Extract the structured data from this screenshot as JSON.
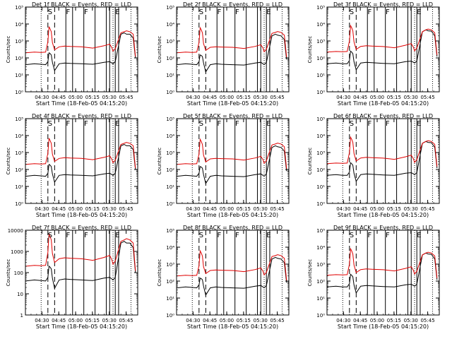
{
  "colors": {
    "events": "#000000",
    "lld": "#e00000",
    "axis": "#000000",
    "background": "#ffffff"
  },
  "shared": {
    "xlabel": "Start Time (18-Feb-05 04:15:20)",
    "ylabel": "Counts/sec",
    "x_tick_labels": [
      "04:30",
      "04:45",
      "05:00",
      "05:15",
      "05:30",
      "05:45"
    ],
    "x_tick_minutes": [
      14.67,
      29.67,
      44.67,
      59.67,
      74.67,
      89.67
    ],
    "xlim_minutes": [
      0,
      100
    ],
    "y_scale": "log",
    "legend_text": "BLACK = Events, RED = LLD",
    "markers": {
      "dotted_lines_minutes": [
        14.0,
        78.0,
        94.0
      ],
      "dashed_lines_minutes": [
        20.0,
        26.0
      ],
      "solid_lines_minutes": [
        36.0,
        42.0,
        52.0,
        62.0,
        72.0,
        75.0,
        80.0,
        83.0
      ],
      "letters": [
        {
          "text": "S",
          "minute": 22.0
        },
        {
          "text": "F",
          "minute": 38.0
        },
        {
          "text": "F",
          "minute": 54.0
        },
        {
          "text": "E",
          "minute": 82.0
        }
      ]
    }
  },
  "chart_data": [
    {
      "type": "line",
      "title": "Det 1f BLACK = Events, RED = LLD",
      "ylim": [
        1,
        100000
      ],
      "y_tick_labels": [
        "10⁰",
        "10¹",
        "10²",
        "10³",
        "10⁴",
        "10⁵"
      ],
      "x": [
        0,
        8,
        14,
        18,
        20,
        21,
        22,
        23,
        24,
        26,
        30,
        35,
        40,
        50,
        60,
        70,
        75,
        77,
        78,
        80,
        85,
        88,
        90,
        93,
        96,
        98
      ],
      "series": [
        {
          "values": [
            40,
            45,
            42,
            40,
            60,
            200,
            180,
            150,
            55,
            18,
            45,
            50,
            48,
            45,
            42,
            55,
            60,
            50,
            45,
            60,
            2500,
            3000,
            2500,
            2500,
            1500,
            100
          ]
        },
        {
          "values": [
            200,
            220,
            210,
            220,
            900,
            7000,
            5000,
            3500,
            800,
            300,
            450,
            500,
            480,
            450,
            380,
            520,
            650,
            400,
            250,
            350,
            3000,
            3500,
            4000,
            3500,
            2500,
            120
          ]
        }
      ]
    },
    {
      "type": "line",
      "title": "Det 2f BLACK = Events, RED = LLD",
      "ylim": [
        1,
        100000
      ],
      "y_tick_labels": [
        "10⁰",
        "10¹",
        "10²",
        "10³",
        "10⁴",
        "10⁵"
      ],
      "x": [
        0,
        8,
        14,
        18,
        20,
        21,
        22,
        23,
        24,
        26,
        30,
        35,
        40,
        50,
        60,
        70,
        75,
        77,
        78,
        80,
        85,
        88,
        90,
        93,
        96,
        98
      ],
      "series": [
        {
          "values": [
            40,
            45,
            42,
            40,
            60,
            150,
            140,
            120,
            50,
            15,
            40,
            45,
            42,
            40,
            38,
            50,
            55,
            45,
            40,
            55,
            2000,
            2500,
            2200,
            2000,
            1200,
            80
          ]
        },
        {
          "values": [
            200,
            220,
            210,
            220,
            800,
            6000,
            4500,
            3000,
            700,
            280,
            420,
            450,
            440,
            420,
            360,
            480,
            600,
            380,
            230,
            330,
            2800,
            3200,
            3600,
            3200,
            2200,
            110
          ]
        }
      ]
    },
    {
      "type": "line",
      "title": "Det 3f BLACK = Events, RED = LLD",
      "ylim": [
        1,
        100000
      ],
      "y_tick_labels": [
        "10⁰",
        "10¹",
        "10²",
        "10³",
        "10⁴",
        "10⁵"
      ],
      "x": [
        0,
        8,
        14,
        18,
        20,
        21,
        22,
        23,
        24,
        26,
        30,
        35,
        40,
        50,
        60,
        70,
        75,
        77,
        78,
        80,
        85,
        88,
        90,
        93,
        96,
        98
      ],
      "series": [
        {
          "values": [
            45,
            50,
            45,
            45,
            70,
            250,
            220,
            180,
            60,
            20,
            50,
            55,
            52,
            48,
            45,
            60,
            65,
            55,
            50,
            65,
            3500,
            4500,
            4000,
            3800,
            2000,
            120
          ]
        },
        {
          "values": [
            220,
            240,
            230,
            240,
            1000,
            8000,
            6000,
            4000,
            900,
            320,
            480,
            520,
            500,
            470,
            400,
            560,
            700,
            420,
            260,
            380,
            3500,
            4500,
            5000,
            4500,
            3000,
            150
          ]
        }
      ]
    },
    {
      "type": "line",
      "title": "Det 4f BLACK = Events, RED = LLD",
      "ylim": [
        1,
        100000
      ],
      "y_tick_labels": [
        "10⁰",
        "10¹",
        "10²",
        "10³",
        "10⁴",
        "10⁵"
      ],
      "x": [
        0,
        8,
        14,
        18,
        20,
        21,
        22,
        23,
        24,
        26,
        30,
        35,
        40,
        50,
        60,
        70,
        75,
        77,
        78,
        80,
        85,
        88,
        90,
        93,
        96,
        98
      ],
      "series": [
        {
          "values": [
            40,
            45,
            42,
            40,
            60,
            200,
            180,
            150,
            55,
            18,
            45,
            50,
            48,
            45,
            42,
            55,
            60,
            50,
            45,
            60,
            2500,
            3000,
            2500,
            2500,
            1500,
            100
          ]
        },
        {
          "values": [
            200,
            220,
            210,
            220,
            900,
            7000,
            5000,
            3500,
            800,
            300,
            450,
            500,
            480,
            450,
            380,
            520,
            650,
            400,
            250,
            350,
            3000,
            3500,
            4000,
            3500,
            2500,
            120
          ]
        }
      ]
    },
    {
      "type": "line",
      "title": "Det 5f BLACK = Events, RED = LLD",
      "ylim": [
        1,
        100000
      ],
      "y_tick_labels": [
        "10⁰",
        "10¹",
        "10²",
        "10³",
        "10⁴",
        "10⁵"
      ],
      "x": [
        0,
        8,
        14,
        18,
        20,
        21,
        22,
        23,
        24,
        26,
        30,
        35,
        40,
        50,
        60,
        70,
        75,
        77,
        78,
        80,
        85,
        88,
        90,
        93,
        96,
        98
      ],
      "series": [
        {
          "values": [
            40,
            45,
            42,
            40,
            60,
            150,
            140,
            120,
            50,
            15,
            40,
            45,
            42,
            40,
            38,
            50,
            55,
            45,
            40,
            55,
            2000,
            2500,
            2200,
            2000,
            1200,
            80
          ]
        },
        {
          "values": [
            200,
            220,
            210,
            220,
            800,
            6000,
            4500,
            3000,
            700,
            280,
            420,
            450,
            440,
            420,
            360,
            480,
            600,
            380,
            230,
            330,
            2800,
            3200,
            3600,
            3200,
            2200,
            110
          ]
        }
      ]
    },
    {
      "type": "line",
      "title": "Det 6f BLACK = Events, RED = LLD",
      "ylim": [
        1,
        100000
      ],
      "y_tick_labels": [
        "10⁰",
        "10¹",
        "10²",
        "10³",
        "10⁴",
        "10⁵"
      ],
      "x": [
        0,
        8,
        14,
        18,
        20,
        21,
        22,
        23,
        24,
        26,
        30,
        35,
        40,
        50,
        60,
        70,
        75,
        77,
        78,
        80,
        85,
        88,
        90,
        93,
        96,
        98
      ],
      "series": [
        {
          "values": [
            45,
            50,
            45,
            45,
            70,
            250,
            220,
            180,
            60,
            20,
            50,
            55,
            52,
            48,
            45,
            60,
            65,
            55,
            50,
            65,
            3500,
            4500,
            4000,
            3800,
            2000,
            120
          ]
        },
        {
          "values": [
            220,
            240,
            230,
            240,
            1000,
            8000,
            6000,
            4000,
            900,
            320,
            480,
            520,
            500,
            470,
            400,
            560,
            700,
            420,
            260,
            380,
            3500,
            4500,
            5000,
            4500,
            3000,
            150
          ]
        }
      ]
    },
    {
      "type": "line",
      "title": "Det 7f BLACK = Events, RED = LLD",
      "ylim": [
        1,
        10000
      ],
      "y_tick_labels": [
        "1",
        "10",
        "100",
        "1000",
        "10000"
      ],
      "x": [
        0,
        8,
        14,
        18,
        20,
        21,
        22,
        23,
        24,
        26,
        30,
        35,
        40,
        50,
        60,
        70,
        75,
        77,
        78,
        80,
        85,
        88,
        90,
        93,
        96,
        98
      ],
      "series": [
        {
          "values": [
            40,
            45,
            42,
            40,
            60,
            200,
            180,
            150,
            55,
            18,
            45,
            50,
            48,
            45,
            42,
            55,
            60,
            50,
            45,
            60,
            2500,
            3000,
            2500,
            2500,
            1500,
            100
          ]
        },
        {
          "values": [
            200,
            220,
            210,
            220,
            900,
            7000,
            5000,
            3500,
            800,
            300,
            450,
            500,
            480,
            450,
            380,
            520,
            650,
            400,
            250,
            350,
            3000,
            3500,
            4000,
            3500,
            2500,
            120
          ]
        }
      ]
    },
    {
      "type": "line",
      "title": "Det 8f BLACK = Events, RED = LLD",
      "ylim": [
        1,
        100000
      ],
      "y_tick_labels": [
        "10⁰",
        "10¹",
        "10²",
        "10³",
        "10⁴",
        "10⁵"
      ],
      "x": [
        0,
        8,
        14,
        18,
        20,
        21,
        22,
        23,
        24,
        26,
        30,
        35,
        40,
        50,
        60,
        70,
        75,
        77,
        78,
        80,
        85,
        88,
        90,
        93,
        96,
        98
      ],
      "series": [
        {
          "values": [
            40,
            45,
            42,
            40,
            60,
            150,
            140,
            120,
            50,
            15,
            40,
            45,
            42,
            40,
            38,
            50,
            55,
            45,
            40,
            55,
            2000,
            2500,
            2200,
            2000,
            1200,
            80
          ]
        },
        {
          "values": [
            200,
            220,
            210,
            220,
            800,
            6000,
            4500,
            3000,
            700,
            280,
            420,
            450,
            440,
            420,
            360,
            480,
            600,
            380,
            230,
            330,
            2800,
            3200,
            3600,
            3200,
            2200,
            110
          ]
        }
      ]
    },
    {
      "type": "line",
      "title": "Det 9f BLACK = Events, RED = LLD",
      "ylim": [
        1,
        100000
      ],
      "y_tick_labels": [
        "10⁰",
        "10¹",
        "10²",
        "10³",
        "10⁴",
        "10⁵"
      ],
      "x": [
        0,
        8,
        14,
        18,
        20,
        21,
        22,
        23,
        24,
        26,
        30,
        35,
        40,
        50,
        60,
        70,
        75,
        77,
        78,
        80,
        85,
        88,
        90,
        93,
        96,
        98
      ],
      "series": [
        {
          "values": [
            45,
            50,
            45,
            45,
            70,
            250,
            220,
            180,
            60,
            20,
            50,
            55,
            52,
            48,
            45,
            60,
            65,
            55,
            50,
            65,
            3500,
            4500,
            4000,
            3800,
            2000,
            120
          ]
        },
        {
          "values": [
            220,
            240,
            230,
            240,
            1000,
            8000,
            6000,
            4000,
            900,
            320,
            480,
            520,
            500,
            470,
            400,
            560,
            700,
            420,
            260,
            380,
            3500,
            4500,
            5000,
            4500,
            3000,
            150
          ]
        }
      ]
    }
  ]
}
